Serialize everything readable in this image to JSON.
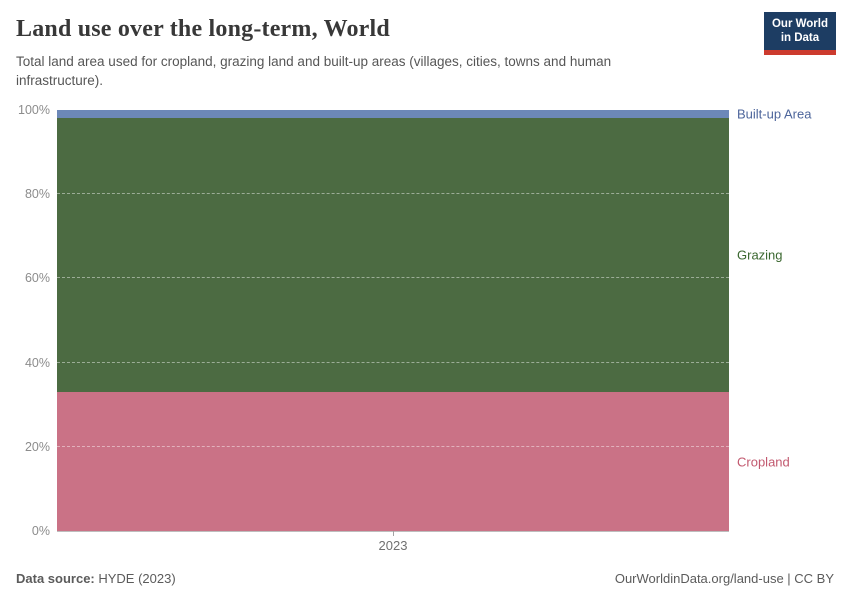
{
  "header": {
    "title": "Land use over the long-term, World",
    "subtitle": "Total land area used for cropland, grazing land and built-up areas (villages, cities, towns and human infrastructure).",
    "logo": {
      "line1": "Our World",
      "line2": "in Data",
      "bg_color": "#1d3d63",
      "accent_color": "#cc3b2e"
    }
  },
  "chart_data": {
    "type": "area",
    "stacked": true,
    "relative": true,
    "title": "Land use over the long-term, World",
    "x": [
      2023
    ],
    "xticks": [
      "2023"
    ],
    "yticks": [
      "0%",
      "20%",
      "40%",
      "60%",
      "80%",
      "100%"
    ],
    "yticks_values": [
      0,
      20,
      40,
      60,
      80,
      100
    ],
    "ylim": [
      0,
      100
    ],
    "grid": "horizontal-dashed",
    "legend_position": "right-entity-labels",
    "series": [
      {
        "name": "Cropland",
        "values": [
          33
        ],
        "color": "#CA7286",
        "label_color": "#C2596F"
      },
      {
        "name": "Grazing",
        "values": [
          65
        ],
        "color": "#4C6B42",
        "label_color": "#3A672F"
      },
      {
        "name": "Built-up Area",
        "values": [
          2
        ],
        "color": "#6C88B8",
        "label_color": "#4D659B"
      }
    ]
  },
  "footer": {
    "source_label": "Data source:",
    "source_value": " HYDE (2023)",
    "attribution": "OurWorldinData.org/land-use | CC BY"
  }
}
